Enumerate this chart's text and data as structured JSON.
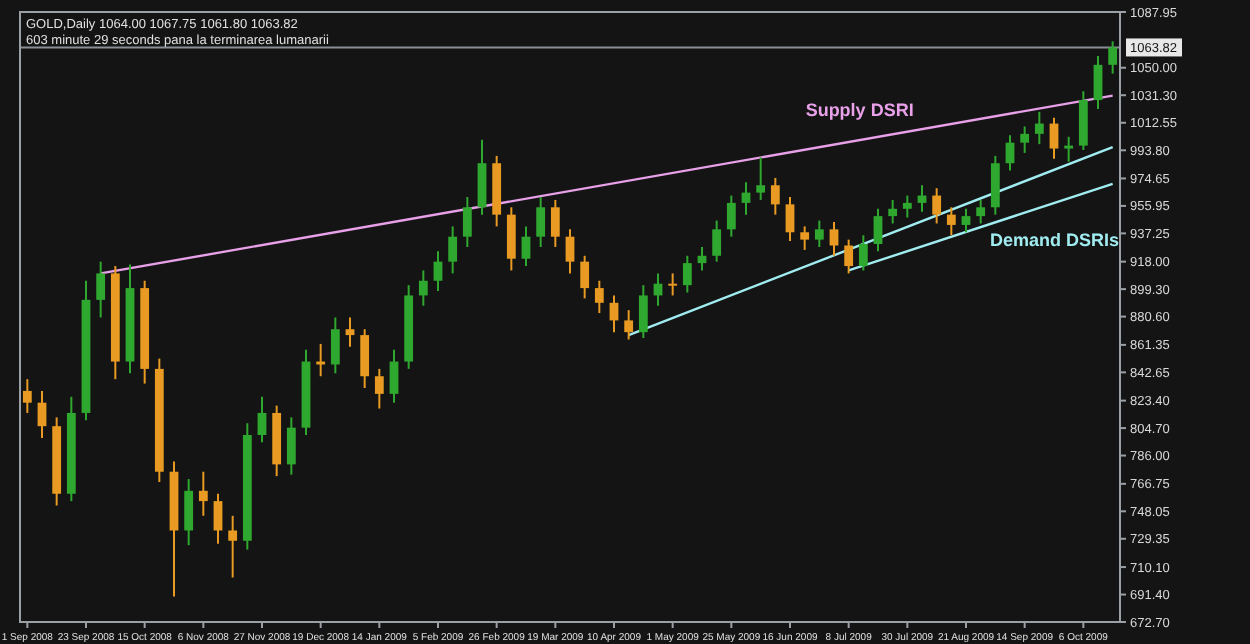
{
  "chart_data": {
    "type": "candlestick",
    "title": "GOLD,Daily  1064.00 1067.75 1061.80 1063.82",
    "subtitle": "603 minute 29 seconds pana la terminarea lumanarii",
    "categories": [
      "1 Sep 2008",
      null,
      null,
      null,
      "23 Sep 2008",
      null,
      null,
      null,
      "15 Oct 2008",
      null,
      null,
      null,
      "6 Nov 2008",
      null,
      null,
      null,
      "27 Nov 2008",
      null,
      null,
      null,
      "19 Dec 2008",
      null,
      null,
      null,
      "14 Jan 2009",
      null,
      null,
      null,
      "5 Feb 2009",
      null,
      null,
      null,
      "26 Feb 2009",
      null,
      null,
      null,
      "19 Mar 2009",
      null,
      null,
      null,
      "10 Apr 2009",
      null,
      null,
      null,
      "1 May 2009",
      null,
      null,
      null,
      "25 May 2009",
      null,
      null,
      null,
      "16 Jun 2009",
      null,
      null,
      null,
      "8 Jul 2009",
      null,
      null,
      null,
      "30 Jul 2009",
      null,
      null,
      null,
      "21 Aug 2009",
      null,
      null,
      null,
      "14 Sep 2009",
      null,
      null,
      null,
      "6 Oct 2009",
      null,
      null
    ],
    "ohlc": [
      [
        830,
        838,
        815,
        822
      ],
      [
        822,
        830,
        798,
        806
      ],
      [
        806,
        812,
        752,
        760
      ],
      [
        760,
        826,
        755,
        815
      ],
      [
        815,
        905,
        810,
        892
      ],
      [
        892,
        918,
        880,
        910
      ],
      [
        910,
        915,
        838,
        850
      ],
      [
        850,
        916,
        842,
        900
      ],
      [
        900,
        905,
        835,
        845
      ],
      [
        845,
        852,
        768,
        775
      ],
      [
        775,
        782,
        690,
        735
      ],
      [
        735,
        770,
        725,
        762
      ],
      [
        762,
        775,
        745,
        755
      ],
      [
        755,
        760,
        726,
        735
      ],
      [
        735,
        745,
        703,
        728
      ],
      [
        728,
        808,
        722,
        800
      ],
      [
        800,
        826,
        795,
        815
      ],
      [
        815,
        820,
        772,
        780
      ],
      [
        780,
        812,
        773,
        805
      ],
      [
        805,
        858,
        800,
        850
      ],
      [
        850,
        862,
        840,
        848
      ],
      [
        848,
        880,
        842,
        872
      ],
      [
        872,
        880,
        860,
        868
      ],
      [
        868,
        872,
        832,
        840
      ],
      [
        840,
        845,
        818,
        828
      ],
      [
        828,
        858,
        822,
        850
      ],
      [
        850,
        902,
        845,
        895
      ],
      [
        895,
        912,
        888,
        905
      ],
      [
        905,
        925,
        898,
        918
      ],
      [
        918,
        942,
        910,
        935
      ],
      [
        935,
        962,
        928,
        955
      ],
      [
        955,
        1001,
        950,
        985
      ],
      [
        985,
        990,
        942,
        950
      ],
      [
        950,
        955,
        912,
        920
      ],
      [
        920,
        942,
        915,
        935
      ],
      [
        935,
        962,
        928,
        955
      ],
      [
        955,
        960,
        928,
        935
      ],
      [
        935,
        940,
        910,
        918
      ],
      [
        918,
        922,
        893,
        900
      ],
      [
        900,
        905,
        883,
        890
      ],
      [
        890,
        895,
        870,
        878
      ],
      [
        878,
        885,
        865,
        870
      ],
      [
        870,
        902,
        866,
        895
      ],
      [
        895,
        910,
        888,
        903
      ],
      [
        903,
        910,
        895,
        902
      ],
      [
        902,
        922,
        897,
        917
      ],
      [
        917,
        928,
        912,
        922
      ],
      [
        922,
        946,
        918,
        940
      ],
      [
        940,
        963,
        935,
        958
      ],
      [
        958,
        972,
        950,
        965
      ],
      [
        965,
        989,
        960,
        970
      ],
      [
        970,
        975,
        950,
        957
      ],
      [
        957,
        962,
        932,
        938
      ],
      [
        938,
        942,
        926,
        933
      ],
      [
        933,
        946,
        928,
        940
      ],
      [
        940,
        945,
        922,
        929
      ],
      [
        929,
        933,
        910,
        915
      ],
      [
        915,
        936,
        912,
        930
      ],
      [
        930,
        954,
        925,
        949
      ],
      [
        949,
        960,
        944,
        954
      ],
      [
        954,
        963,
        948,
        958
      ],
      [
        958,
        970,
        952,
        963
      ],
      [
        963,
        968,
        944,
        950
      ],
      [
        950,
        955,
        936,
        943
      ],
      [
        943,
        954,
        938,
        949
      ],
      [
        949,
        960,
        944,
        955
      ],
      [
        955,
        990,
        950,
        985
      ],
      [
        985,
        1004,
        980,
        999
      ],
      [
        999,
        1010,
        992,
        1005
      ],
      [
        1005,
        1020,
        998,
        1012
      ],
      [
        1012,
        1016,
        988,
        995
      ],
      [
        995,
        1003,
        986,
        997
      ],
      [
        997,
        1034,
        994,
        1028
      ],
      [
        1028,
        1058,
        1022,
        1052
      ],
      [
        1052,
        1068,
        1046,
        1063.82
      ]
    ],
    "series": [
      {
        "type": "line",
        "name": "Supply DSRI",
        "color": "#e8a0e8",
        "values": [
          null,
          null,
          null,
          null,
          null,
          910,
          null,
          null,
          null,
          null,
          null,
          null,
          null,
          null,
          null,
          null,
          null,
          null,
          null,
          null,
          null,
          null,
          null,
          null,
          null,
          null,
          null,
          null,
          null,
          null,
          null,
          null,
          null,
          null,
          null,
          null,
          null,
          null,
          null,
          null,
          null,
          null,
          null,
          null,
          null,
          null,
          null,
          null,
          null,
          null,
          null,
          null,
          null,
          null,
          null,
          null,
          null,
          null,
          null,
          null,
          null,
          null,
          null,
          null,
          null,
          null,
          null,
          null,
          null,
          null,
          null,
          null,
          null,
          null,
          1031
        ]
      },
      {
        "type": "line",
        "name": "Demand DSRIs",
        "color": "#a0ecf0",
        "values": [
          null,
          null,
          null,
          null,
          null,
          null,
          null,
          null,
          null,
          null,
          null,
          null,
          null,
          null,
          null,
          null,
          null,
          null,
          null,
          null,
          null,
          null,
          null,
          null,
          null,
          null,
          null,
          null,
          null,
          null,
          null,
          null,
          null,
          null,
          null,
          null,
          null,
          null,
          null,
          null,
          null,
          868,
          null,
          null,
          null,
          null,
          null,
          null,
          null,
          null,
          null,
          null,
          null,
          null,
          null,
          null,
          null,
          null,
          null,
          null,
          null,
          null,
          null,
          null,
          null,
          null,
          null,
          null,
          null,
          null,
          null,
          null,
          null,
          null,
          996
        ]
      },
      {
        "type": "line",
        "color": "#a0ecf0",
        "values": [
          null,
          null,
          null,
          null,
          null,
          null,
          null,
          null,
          null,
          null,
          null,
          null,
          null,
          null,
          null,
          null,
          null,
          null,
          null,
          null,
          null,
          null,
          null,
          null,
          null,
          null,
          null,
          null,
          null,
          null,
          null,
          null,
          null,
          null,
          null,
          null,
          null,
          null,
          null,
          null,
          null,
          null,
          null,
          null,
          null,
          null,
          null,
          null,
          null,
          null,
          null,
          null,
          null,
          null,
          null,
          null,
          912,
          null,
          null,
          null,
          null,
          null,
          null,
          null,
          null,
          null,
          null,
          null,
          null,
          null,
          null,
          null,
          null,
          null,
          971
        ]
      }
    ],
    "ylim": [
      672.7,
      1087.95
    ],
    "yticks": [
      {
        "value": 672.7,
        "label": "672.70"
      },
      {
        "value": 691.4,
        "label": "691.40"
      },
      {
        "value": 710.1,
        "label": "710.10"
      },
      {
        "value": 729.35,
        "label": "729.35"
      },
      {
        "value": 748.05,
        "label": "748.05"
      },
      {
        "value": 766.75,
        "label": "766.75"
      },
      {
        "value": 786,
        "label": "786.00"
      },
      {
        "value": 804.7,
        "label": "804.70"
      },
      {
        "value": 823.4,
        "label": "823.40"
      },
      {
        "value": 842.65,
        "label": "842.65"
      },
      {
        "value": 861.35,
        "label": "861.35"
      },
      {
        "value": 880.6,
        "label": "880.60"
      },
      {
        "value": 899.3,
        "label": "899.30"
      },
      {
        "value": 918,
        "label": "918.00"
      },
      {
        "value": 937.25,
        "label": "937.25"
      },
      {
        "value": 955.95,
        "label": "955.95"
      },
      {
        "value": 974.65,
        "label": "974.65"
      },
      {
        "value": 993.8,
        "label": "993.80"
      },
      {
        "value": 1012.55,
        "label": "1012.55"
      },
      {
        "value": 1031.3,
        "label": "1031.30"
      },
      {
        "value": 1050,
        "label": "1050.00"
      },
      {
        "value": 1087.95,
        "label": "1087.95"
      }
    ],
    "ref_lines": [
      {
        "axis": "y",
        "value": 1063.82,
        "label": "1063.82",
        "color": "#8a8f96"
      }
    ],
    "grid": false
  }
}
